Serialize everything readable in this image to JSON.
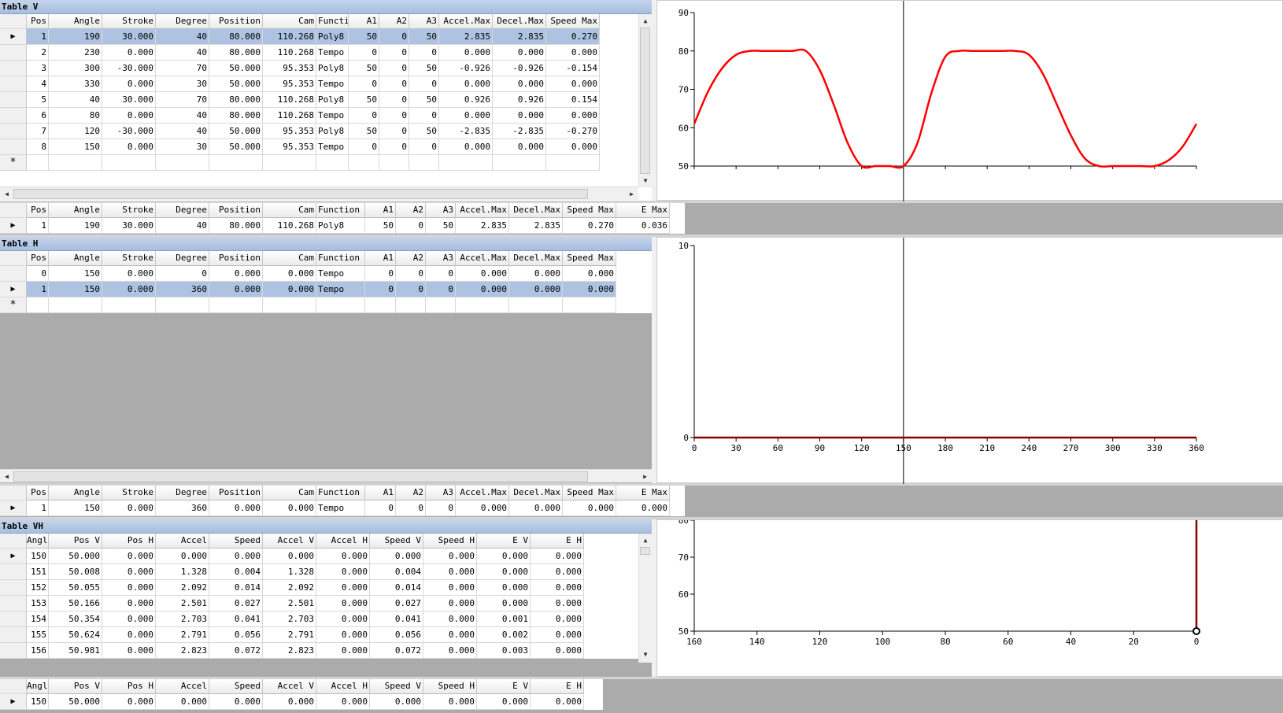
{
  "table_v": {
    "title": "Table V",
    "columns": [
      "Pos",
      "Angle",
      "Stroke",
      "Degree",
      "Position",
      "Cam",
      "Functi",
      "A1",
      "A2",
      "A3",
      "Accel.Max",
      "Decel.Max",
      "Speed Max"
    ],
    "rows": [
      [
        "1",
        "190",
        "30.000",
        "40",
        "80.000",
        "110.268",
        "Poly8",
        "50",
        "0",
        "50",
        "2.835",
        "2.835",
        "0.270"
      ],
      [
        "2",
        "230",
        "0.000",
        "40",
        "80.000",
        "110.268",
        "Tempo",
        "0",
        "0",
        "0",
        "0.000",
        "0.000",
        "0.000"
      ],
      [
        "3",
        "300",
        "-30.000",
        "70",
        "50.000",
        "95.353",
        "Poly8",
        "50",
        "0",
        "50",
        "-0.926",
        "-0.926",
        "-0.154"
      ],
      [
        "4",
        "330",
        "0.000",
        "30",
        "50.000",
        "95.353",
        "Tempo",
        "0",
        "0",
        "0",
        "0.000",
        "0.000",
        "0.000"
      ],
      [
        "5",
        "40",
        "30.000",
        "70",
        "80.000",
        "110.268",
        "Poly8",
        "50",
        "0",
        "50",
        "0.926",
        "0.926",
        "0.154"
      ],
      [
        "6",
        "80",
        "0.000",
        "40",
        "80.000",
        "110.268",
        "Tempo",
        "0",
        "0",
        "0",
        "0.000",
        "0.000",
        "0.000"
      ],
      [
        "7",
        "120",
        "-30.000",
        "40",
        "50.000",
        "95.353",
        "Poly8",
        "50",
        "0",
        "50",
        "-2.835",
        "-2.835",
        "-0.270"
      ],
      [
        "8",
        "150",
        "0.000",
        "30",
        "50.000",
        "95.353",
        "Tempo",
        "0",
        "0",
        "0",
        "0.000",
        "0.000",
        "0.000"
      ]
    ],
    "new_row_marker": "*",
    "current_marker": "▶"
  },
  "detail_v": {
    "columns": [
      "Pos",
      "Angle",
      "Stroke",
      "Degree",
      "Position",
      "Cam",
      "Function",
      "A1",
      "A2",
      "A3",
      "Accel.Max",
      "Decel.Max",
      "Speed Max",
      "E Max"
    ],
    "row": [
      "1",
      "190",
      "30.000",
      "40",
      "80.000",
      "110.268",
      "Poly8",
      "50",
      "0",
      "50",
      "2.835",
      "2.835",
      "0.270",
      "0.036"
    ]
  },
  "table_h": {
    "title": "Table H",
    "columns": [
      "Pos",
      "Angle",
      "Stroke",
      "Degree",
      "Position",
      "Cam",
      "Function",
      "A1",
      "A2",
      "A3",
      "Accel.Max",
      "Decel.Max",
      "Speed Max"
    ],
    "rows": [
      [
        "0",
        "150",
        "0.000",
        "0",
        "0.000",
        "0.000",
        "Tempo",
        "0",
        "0",
        "0",
        "0.000",
        "0.000",
        "0.000"
      ],
      [
        "1",
        "150",
        "0.000",
        "360",
        "0.000",
        "0.000",
        "Tempo",
        "0",
        "0",
        "0",
        "0.000",
        "0.000",
        "0.000"
      ]
    ]
  },
  "detail_h": {
    "columns": [
      "Pos",
      "Angle",
      "Stroke",
      "Degree",
      "Position",
      "Cam",
      "Function",
      "A1",
      "A2",
      "A3",
      "Accel.Max",
      "Decel.Max",
      "Speed Max",
      "E Max"
    ],
    "row": [
      "1",
      "150",
      "0.000",
      "360",
      "0.000",
      "0.000",
      "Tempo",
      "0",
      "0",
      "0",
      "0.000",
      "0.000",
      "0.000",
      "0.000"
    ]
  },
  "table_vh": {
    "title": "Table VH",
    "columns": [
      "Angl",
      "Pos V",
      "Pos H",
      "Accel",
      "Speed",
      "Accel V",
      "Accel H",
      "Speed V",
      "Speed H",
      "E V",
      "E H"
    ],
    "rows": [
      [
        "150",
        "50.000",
        "0.000",
        "0.000",
        "0.000",
        "0.000",
        "0.000",
        "0.000",
        "0.000",
        "0.000",
        "0.000"
      ],
      [
        "151",
        "50.008",
        "0.000",
        "1.328",
        "0.004",
        "1.328",
        "0.000",
        "0.004",
        "0.000",
        "0.000",
        "0.000"
      ],
      [
        "152",
        "50.055",
        "0.000",
        "2.092",
        "0.014",
        "2.092",
        "0.000",
        "0.014",
        "0.000",
        "0.000",
        "0.000"
      ],
      [
        "153",
        "50.166",
        "0.000",
        "2.501",
        "0.027",
        "2.501",
        "0.000",
        "0.027",
        "0.000",
        "0.000",
        "0.000"
      ],
      [
        "154",
        "50.354",
        "0.000",
        "2.703",
        "0.041",
        "2.703",
        "0.000",
        "0.041",
        "0.000",
        "0.001",
        "0.000"
      ],
      [
        "155",
        "50.624",
        "0.000",
        "2.791",
        "0.056",
        "2.791",
        "0.000",
        "0.056",
        "0.000",
        "0.002",
        "0.000"
      ],
      [
        "156",
        "50.981",
        "0.000",
        "2.823",
        "0.072",
        "2.823",
        "0.000",
        "0.072",
        "0.000",
        "0.003",
        "0.000"
      ]
    ]
  },
  "detail_vh": {
    "columns": [
      "Angl",
      "Pos V",
      "Pos H",
      "Accel",
      "Speed",
      "Accel V",
      "Accel H",
      "Speed V",
      "Speed H",
      "E V",
      "E H"
    ],
    "row": [
      "150",
      "50.000",
      "0.000",
      "0.000",
      "0.000",
      "0.000",
      "0.000",
      "0.000",
      "0.000",
      "0.000",
      "0.000"
    ]
  },
  "chart_data": [
    {
      "type": "line",
      "series": [
        {
          "color": "#ff0000",
          "x": [
            0,
            10,
            20,
            30,
            40,
            50,
            60,
            70,
            80,
            90,
            100,
            110,
            120,
            130,
            140,
            150,
            160,
            170,
            180,
            190,
            200,
            210,
            220,
            230,
            240,
            250,
            260,
            270,
            280,
            290,
            300,
            310,
            320,
            330,
            340,
            350,
            360
          ],
          "y": [
            61,
            69.5,
            75.5,
            79,
            80,
            80,
            80,
            80,
            80,
            75,
            66,
            56,
            50,
            50,
            50,
            50,
            56,
            69,
            78.5,
            80,
            80,
            80,
            80,
            80,
            79,
            74,
            66,
            58,
            52,
            50,
            50,
            50,
            50,
            50,
            51.5,
            55,
            61
          ]
        }
      ],
      "ylim": [
        50,
        90
      ],
      "yticks": [
        "50",
        "60",
        "70",
        "80",
        "90"
      ],
      "xlim": [
        0,
        360
      ],
      "cursor_x": 150,
      "x_ticks_count": 12
    },
    {
      "type": "line",
      "series": [
        {
          "color": "#8b0000",
          "x": [
            0,
            360
          ],
          "y": [
            0,
            0
          ]
        }
      ],
      "ylim": [
        0,
        10
      ],
      "yticks": [
        "0",
        "10"
      ],
      "xlim": [
        0,
        360
      ],
      "xticks": [
        "0",
        "30",
        "60",
        "90",
        "120",
        "150",
        "180",
        "210",
        "240",
        "270",
        "300",
        "330",
        "360"
      ],
      "cursor_x": 150
    },
    {
      "type": "line",
      "series": [
        {
          "color": "#8b0000",
          "x": [
            0,
            0
          ],
          "y": [
            50,
            80
          ]
        }
      ],
      "ylim": [
        50,
        80
      ],
      "yticks": [
        "50",
        "60",
        "70",
        "80"
      ],
      "xlim": [
        160,
        0
      ],
      "xticks": [
        "160",
        "140",
        "120",
        "100",
        "80",
        "60",
        "40",
        "20",
        "0"
      ],
      "marker": {
        "x": 0,
        "y": 50
      }
    }
  ]
}
